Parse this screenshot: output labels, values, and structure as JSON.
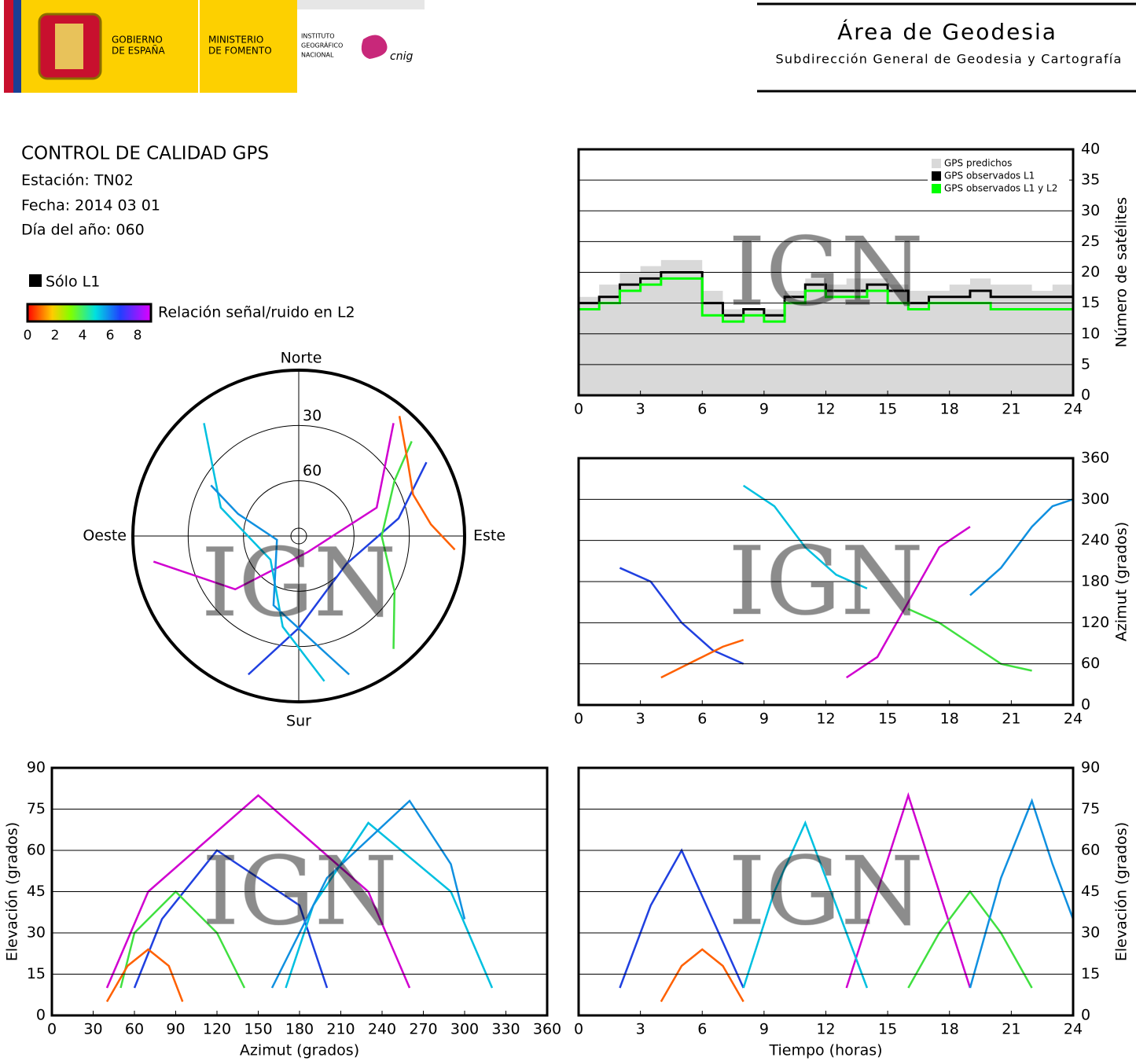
{
  "header": {
    "gov1": "GOBIERNO",
    "gov2": "DE ESPAÑA",
    "min1": "MINISTERIO",
    "min2": "DE FOMENTO",
    "inst1": "INSTITUTO",
    "inst2": "GEOGRÁFICO",
    "inst3": "NACIONAL",
    "cnig": "cnig",
    "area": "Área de Geodesia",
    "sub": "Subdirección General de Geodesia y Cartografía"
  },
  "info": {
    "title": "CONTROL DE CALIDAD GPS",
    "station": "Estación: TN02",
    "date": "Fecha: 2014 03 01",
    "doy": "Día del año: 060"
  },
  "snr_legend": {
    "l1_label": "Sólo L1",
    "label": "Relación señal/ruido en L2",
    "ticks": [
      0,
      2,
      4,
      6,
      8
    ]
  },
  "watermark": "IGN",
  "chart_data": [
    {
      "type": "step",
      "ylabel": "Número de satélites",
      "xlim": [
        0,
        24
      ],
      "ylim": [
        0,
        40
      ],
      "xticks": [
        0,
        3,
        6,
        9,
        12,
        15,
        18,
        21,
        24
      ],
      "yticks": [
        0,
        5,
        10,
        15,
        20,
        25,
        30,
        35,
        40
      ],
      "grid": true,
      "legend": "top-right",
      "axis_side": "right",
      "x": [
        0,
        1,
        2,
        3,
        4,
        5,
        6,
        7,
        8,
        9,
        10,
        11,
        12,
        13,
        14,
        15,
        16,
        17,
        18,
        19,
        20,
        21,
        22,
        23,
        24
      ],
      "series": [
        {
          "name": "GPS predichos",
          "color": "#d9d9d9",
          "area": true,
          "values": [
            16,
            18,
            20,
            21,
            22,
            22,
            17,
            14,
            14,
            14,
            17,
            19,
            18,
            19,
            19,
            18,
            17,
            17,
            18,
            19,
            18,
            18,
            17,
            18,
            18
          ]
        },
        {
          "name": "GPS observados L1",
          "color": "#000000",
          "values": [
            15,
            16,
            18,
            19,
            20,
            20,
            15,
            13,
            14,
            13,
            16,
            18,
            17,
            17,
            18,
            17,
            15,
            16,
            16,
            17,
            16,
            16,
            16,
            16,
            16
          ]
        },
        {
          "name": "GPS observados L1 y L2",
          "color": "#00ff00",
          "values": [
            14,
            15,
            17,
            18,
            19,
            19,
            13,
            12,
            13,
            12,
            15,
            17,
            16,
            16,
            17,
            15,
            14,
            15,
            15,
            15,
            14,
            14,
            14,
            14,
            14
          ]
        }
      ]
    },
    {
      "type": "line",
      "ylabel": "Azimut (grados)",
      "xlim": [
        0,
        24
      ],
      "ylim": [
        0,
        360
      ],
      "xticks": [
        0,
        3,
        6,
        9,
        12,
        15,
        18,
        21,
        24
      ],
      "yticks": [
        0,
        60,
        120,
        180,
        240,
        300,
        360
      ],
      "grid": true,
      "axis_side": "right",
      "series": [
        {
          "color": "#d000d0",
          "x": [
            13,
            14.5,
            16,
            17.5,
            19
          ],
          "values": [
            40,
            70,
            150,
            230,
            260
          ]
        },
        {
          "color": "#2040e0",
          "x": [
            2,
            3.5,
            5,
            6.5,
            8
          ],
          "values": [
            200,
            180,
            120,
            80,
            60
          ]
        },
        {
          "color": "#00c0e0",
          "x": [
            8,
            9.5,
            11,
            12.5,
            14
          ],
          "values": [
            320,
            290,
            230,
            190,
            170
          ]
        },
        {
          "color": "#40e040",
          "x": [
            16,
            17.5,
            19,
            20.5,
            22
          ],
          "values": [
            140,
            120,
            90,
            60,
            50
          ]
        },
        {
          "color": "#ff6000",
          "x": [
            4,
            5,
            6,
            7,
            8
          ],
          "values": [
            40,
            55,
            70,
            85,
            95
          ]
        },
        {
          "color": "#1090e0",
          "x": [
            19,
            20.5,
            22,
            23,
            24
          ],
          "values": [
            160,
            200,
            260,
            290,
            300
          ]
        }
      ]
    },
    {
      "type": "line",
      "xlabel": "Azimut (grados)",
      "ylabel": "Elevación (grados)",
      "xlim": [
        0,
        360
      ],
      "ylim": [
        0,
        90
      ],
      "xticks": [
        0,
        30,
        60,
        90,
        120,
        150,
        180,
        210,
        240,
        270,
        300,
        330,
        360
      ],
      "yticks": [
        0,
        15,
        30,
        45,
        60,
        75,
        90
      ],
      "grid": true,
      "axis_side": "left",
      "series": [
        {
          "color": "#d000d0",
          "x": [
            40,
            70,
            150,
            230,
            260
          ],
          "values": [
            10,
            45,
            80,
            45,
            10
          ]
        },
        {
          "color": "#2040e0",
          "x": [
            200,
            180,
            120,
            80,
            60
          ],
          "values": [
            10,
            40,
            60,
            35,
            10
          ]
        },
        {
          "color": "#00c0e0",
          "x": [
            320,
            290,
            230,
            190,
            170
          ],
          "values": [
            10,
            45,
            70,
            40,
            10
          ]
        },
        {
          "color": "#40e040",
          "x": [
            140,
            120,
            90,
            60,
            50
          ],
          "values": [
            10,
            30,
            45,
            30,
            10
          ]
        },
        {
          "color": "#ff6000",
          "x": [
            40,
            55,
            70,
            85,
            95
          ],
          "values": [
            5,
            18,
            24,
            18,
            5
          ]
        },
        {
          "color": "#1090e0",
          "x": [
            160,
            200,
            260,
            290,
            300
          ],
          "values": [
            10,
            50,
            78,
            55,
            35
          ]
        }
      ]
    },
    {
      "type": "line",
      "xlabel": "Tiempo (horas)",
      "ylabel": "Elevación (grados)",
      "xlim": [
        0,
        24
      ],
      "ylim": [
        0,
        90
      ],
      "xticks": [
        0,
        3,
        6,
        9,
        12,
        15,
        18,
        21,
        24
      ],
      "yticks": [
        0,
        15,
        30,
        45,
        60,
        75,
        90
      ],
      "grid": true,
      "axis_side": "right",
      "series": [
        {
          "color": "#d000d0",
          "x": [
            13,
            14.5,
            16,
            17.5,
            19
          ],
          "values": [
            10,
            45,
            80,
            45,
            10
          ]
        },
        {
          "color": "#2040e0",
          "x": [
            2,
            3.5,
            5,
            6.5,
            8
          ],
          "values": [
            10,
            40,
            60,
            35,
            10
          ]
        },
        {
          "color": "#00c0e0",
          "x": [
            8,
            9.5,
            11,
            12.5,
            14
          ],
          "values": [
            10,
            45,
            70,
            40,
            10
          ]
        },
        {
          "color": "#40e040",
          "x": [
            16,
            17.5,
            19,
            20.5,
            22
          ],
          "values": [
            10,
            30,
            45,
            30,
            10
          ]
        },
        {
          "color": "#ff6000",
          "x": [
            4,
            5,
            6,
            7,
            8
          ],
          "values": [
            5,
            18,
            24,
            18,
            5
          ]
        },
        {
          "color": "#1090e0",
          "x": [
            19,
            20.5,
            22,
            23,
            24
          ],
          "values": [
            10,
            50,
            78,
            55,
            35
          ]
        }
      ]
    },
    {
      "type": "polar",
      "north": "Norte",
      "south": "Sur",
      "west": "Oeste",
      "east": "Este",
      "rlim": [
        90,
        0
      ],
      "rticks": [
        30,
        60
      ],
      "series": [
        {
          "color": "#d000d0",
          "azimuth": [
            40,
            70,
            150,
            230,
            260
          ],
          "values": [
            10,
            45,
            80,
            45,
            10
          ]
        },
        {
          "color": "#2040e0",
          "azimuth": [
            200,
            180,
            120,
            80,
            60
          ],
          "values": [
            10,
            40,
            60,
            35,
            10
          ]
        },
        {
          "color": "#00c0e0",
          "azimuth": [
            320,
            290,
            230,
            190,
            170
          ],
          "values": [
            10,
            45,
            70,
            40,
            10
          ]
        },
        {
          "color": "#40e040",
          "azimuth": [
            140,
            120,
            90,
            60,
            50
          ],
          "values": [
            10,
            30,
            45,
            30,
            10
          ]
        },
        {
          "color": "#ff6000",
          "azimuth": [
            40,
            55,
            70,
            85,
            95
          ],
          "values": [
            5,
            18,
            24,
            18,
            5
          ]
        },
        {
          "color": "#1090e0",
          "azimuth": [
            160,
            200,
            260,
            290,
            300
          ],
          "values": [
            10,
            50,
            78,
            55,
            35
          ]
        }
      ]
    }
  ]
}
